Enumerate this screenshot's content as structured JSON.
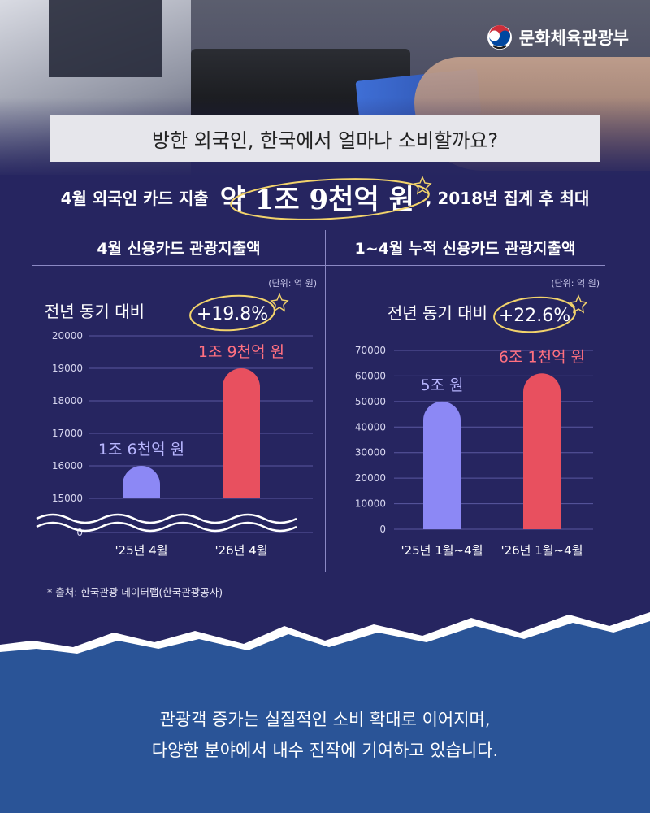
{
  "logo": {
    "text": "문화체육관광부"
  },
  "title": "방한 외국인, 한국에서 얼마나 소비할까요?",
  "headline": {
    "prefix": "4월 외국인 카드 지출",
    "highlight": "약 1조 9천억 원",
    "suffix": ", 2018년 집계 후 최대"
  },
  "chart_data": [
    {
      "type": "bar",
      "title": "4월 신용카드 관광지출액",
      "unit_label": "(단위: 억 원)",
      "growth_label": "전년 동기 대비",
      "growth_value": "+19.8%",
      "categories": [
        "'25년 4월",
        "'26년 4월"
      ],
      "values": [
        16000,
        19000
      ],
      "data_labels": [
        "1조 6천억 원",
        "1조 9천억 원"
      ],
      "yticks": [
        "20000",
        "19000",
        "18000",
        "17000",
        "16000",
        "15000",
        "0"
      ],
      "ylim": [
        15000,
        20000
      ],
      "axis_break": true,
      "bar_colors": [
        "#8c88f5",
        "#e8505f"
      ],
      "label_colors": [
        "#b8b6ff",
        "#ff7080"
      ]
    },
    {
      "type": "bar",
      "title": "1~4월 누적 신용카드 관광지출액",
      "unit_label": "(단위: 억 원)",
      "growth_label": "전년 동기 대비",
      "growth_value": "+22.6%",
      "categories": [
        "'25년 1월~4월",
        "'26년 1월~4월"
      ],
      "values": [
        50000,
        61000
      ],
      "data_labels": [
        "5조 원",
        "6조 1천억 원"
      ],
      "yticks": [
        "70000",
        "60000",
        "50000",
        "40000",
        "30000",
        "20000",
        "10000",
        "0"
      ],
      "ylim": [
        0,
        70000
      ],
      "bar_colors": [
        "#8c88f5",
        "#e8505f"
      ],
      "label_colors": [
        "#b8b6ff",
        "#ff7080"
      ]
    }
  ],
  "source": "* 출처: 한국관광 데이터랩(한국관광공사)",
  "bottom": {
    "line1": "관광객 증가는 실질적인 소비 확대로 이어지며,",
    "line2": "다양한 분야에서 내수 진작에 기여하고 있습니다."
  }
}
